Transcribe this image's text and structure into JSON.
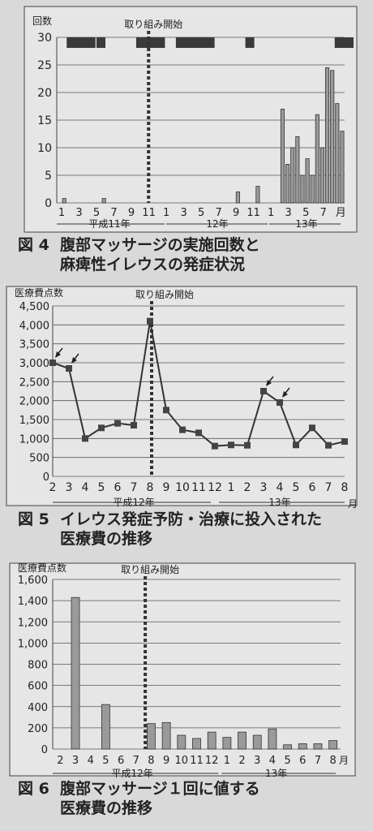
{
  "figures": [
    {
      "id": "fig4",
      "caption_num": "図 4",
      "caption_line1": "腹部マッサージの実施回数と",
      "caption_line2": "麻痺性イレウスの発症状況",
      "chart_data": {
        "type": "bar",
        "ylabel": "回数",
        "ylim": [
          0,
          30
        ],
        "yticks": [
          "0",
          "5",
          "10",
          "15",
          "20",
          "25",
          "30"
        ],
        "x_tick_labels": [
          "1",
          "3",
          "5",
          "7",
          "9",
          "11",
          "1",
          "3",
          "5",
          "7",
          "9",
          "11",
          "1",
          "3",
          "5",
          "7",
          "月"
        ],
        "period_labels": [
          "平成11年",
          "12年",
          "13年"
        ],
        "annotation": "取り組み開始",
        "intervention_index": 18.5,
        "values": [
          0,
          0.8,
          0,
          0,
          0,
          0,
          0,
          0,
          0,
          0.8,
          0,
          0,
          0,
          0,
          0,
          0,
          0,
          0,
          0,
          0,
          0,
          0,
          0,
          0,
          0,
          0,
          0,
          0,
          0,
          0,
          0,
          0,
          0,
          0,
          0,
          0,
          2,
          0,
          0,
          0,
          3,
          0,
          0,
          0,
          0,
          17,
          7,
          10,
          12,
          5,
          8,
          5,
          16,
          10,
          24.5,
          24,
          18,
          13
        ],
        "value_note": "monthly counts (bars); dark segments at top = ileus episodes",
        "ileus_months": [
          [
            1,
            3
          ],
          [
            4,
            4
          ],
          [
            8,
            10
          ],
          [
            12,
            15
          ],
          [
            19,
            19
          ],
          [
            28,
            29
          ]
        ]
      }
    },
    {
      "id": "fig5",
      "caption_num": "図 5",
      "caption_line1": "イレウス発症予防・治療に投入された",
      "caption_line2": "医療費の推移",
      "chart_data": {
        "type": "line",
        "ylabel": "医療費点数",
        "ylim": [
          0,
          4500
        ],
        "yticks": [
          "0",
          "500",
          "1,000",
          "1,500",
          "2,000",
          "2,500",
          "3,000",
          "3,500",
          "4,000",
          "4,500"
        ],
        "categories": [
          "2",
          "3",
          "4",
          "5",
          "6",
          "7",
          "8",
          "9",
          "10",
          "11",
          "12",
          "1",
          "2",
          "3",
          "4",
          "5",
          "6",
          "7",
          "8"
        ],
        "x_suffix": "月",
        "period_labels": [
          "平成12年",
          "13年"
        ],
        "annotation": "取り組み開始",
        "values": [
          3000,
          2850,
          1000,
          1280,
          1400,
          1350,
          4100,
          1750,
          1230,
          1150,
          800,
          830,
          820,
          2250,
          1950,
          830,
          1280,
          820,
          920
        ],
        "arrow_points": [
          0,
          1,
          13,
          14
        ]
      }
    },
    {
      "id": "fig6",
      "caption_num": "図 6",
      "caption_line1": "腹部マッサージ１回に値する",
      "caption_line2": "医療費の推移",
      "chart_data": {
        "type": "bar",
        "ylabel": "医療費点数",
        "ylim": [
          0,
          1600
        ],
        "yticks": [
          "0",
          "200",
          "400",
          "600",
          "800",
          "1,000",
          "1,200",
          "1,400",
          "1,600"
        ],
        "categories": [
          "2",
          "3",
          "4",
          "5",
          "6",
          "7",
          "8",
          "9",
          "10",
          "11",
          "12",
          "1",
          "2",
          "3",
          "4",
          "5",
          "6",
          "7",
          "8"
        ],
        "x_suffix": "月",
        "period_labels": [
          "平成12年",
          "13年"
        ],
        "annotation": "取り組み開始",
        "values": [
          0,
          1430,
          0,
          420,
          0,
          0,
          240,
          250,
          130,
          100,
          160,
          110,
          160,
          130,
          190,
          40,
          50,
          50,
          80
        ]
      }
    }
  ]
}
